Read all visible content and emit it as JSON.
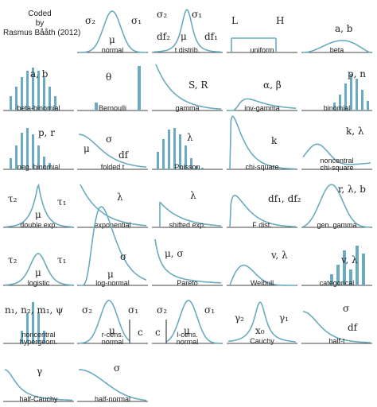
{
  "credit": {
    "line1": "Coded",
    "line2": "by",
    "line3": "Rasmus Bååth (2012)"
  },
  "colors": {
    "curve": "#6aabc0",
    "axis": "#444444",
    "text": "#222222"
  },
  "distributions": [
    {
      "name": "normal",
      "params": [
        "σ₂",
        "μ",
        "σ₁"
      ]
    },
    {
      "name": "t distrib.",
      "params": [
        "σ₂",
        "σ₁",
        "df₂",
        "μ",
        "df₁"
      ]
    },
    {
      "name": "uniform",
      "params": [
        "L",
        "H"
      ]
    },
    {
      "name": "beta",
      "params": [
        "a, b"
      ]
    },
    {
      "name": "beta-binomial",
      "params": [
        "a, b"
      ]
    },
    {
      "name": "Bernoulli",
      "params": [
        "θ"
      ]
    },
    {
      "name": "gamma",
      "params": [
        "S, R"
      ]
    },
    {
      "name": "inv-gamma",
      "params": [
        "α, β"
      ]
    },
    {
      "name": "binomial",
      "params": [
        "p, n"
      ]
    },
    {
      "name": "neg. binomial",
      "params": [
        "p, r"
      ]
    },
    {
      "name": "folded t",
      "params": [
        "μ",
        "σ",
        "df"
      ]
    },
    {
      "name": "Poisson",
      "params": [
        "λ"
      ]
    },
    {
      "name": "chi-square",
      "params": [
        "k"
      ]
    },
    {
      "name": "noncentral\nchi-square",
      "params": [
        "k, λ"
      ]
    },
    {
      "name": "double exp.",
      "params": [
        "τ₂",
        "τ₁",
        "μ"
      ]
    },
    {
      "name": "exponential",
      "params": [
        "λ"
      ]
    },
    {
      "name": "shifted exp.",
      "params": [
        "λ"
      ]
    },
    {
      "name": "F dist.",
      "params": [
        "df₁, df₂"
      ]
    },
    {
      "name": "gen. gamma",
      "params": [
        "r, λ, b"
      ]
    },
    {
      "name": "logistic",
      "params": [
        "τ₂",
        "τ₁",
        "μ"
      ]
    },
    {
      "name": "log-normal",
      "params": [
        "σ",
        "μ"
      ]
    },
    {
      "name": "Pareto",
      "params": [
        "μ, σ"
      ]
    },
    {
      "name": "Weibull",
      "params": [
        "v, λ"
      ]
    },
    {
      "name": "categorical",
      "params": [
        "v, λ"
      ]
    },
    {
      "name": "noncentral\nhypergeom.",
      "params": [
        "n₁, n₂, m₁, ψ"
      ]
    },
    {
      "name": "r-cens.\nnormal",
      "params": [
        "σ₂",
        "σ₁",
        "μ",
        "c"
      ]
    },
    {
      "name": "l-cens.\nnormal",
      "params": [
        "σ₂",
        "σ₁",
        "μ",
        "c"
      ]
    },
    {
      "name": "Cauchy",
      "params": [
        "γ₂",
        "γ₁",
        "x₀"
      ]
    },
    {
      "name": "half-t",
      "params": [
        "σ",
        "df"
      ]
    },
    {
      "name": "half-Cauchy",
      "params": [
        "γ"
      ]
    },
    {
      "name": "half-normal",
      "params": [
        "σ"
      ]
    }
  ]
}
